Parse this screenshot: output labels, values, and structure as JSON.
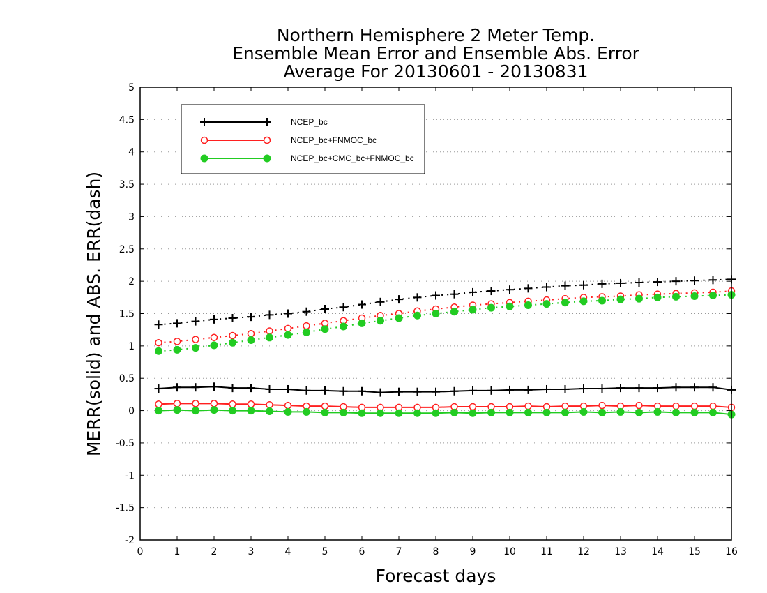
{
  "chart_data": {
    "type": "line",
    "title_lines": [
      "Northern Hemisphere 2 Meter Temp.",
      "Ensemble Mean Error and Ensemble Abs. Error",
      "Average For 20130601 - 20130831"
    ],
    "xlabel": "Forecast days",
    "ylabel": "MERR(solid) and ABS. ERR(dash)",
    "xlim": [
      0,
      16
    ],
    "ylim": [
      -2,
      5
    ],
    "xticks": [
      0,
      1,
      2,
      3,
      4,
      5,
      6,
      7,
      8,
      9,
      10,
      11,
      12,
      13,
      14,
      15,
      16
    ],
    "yticks": [
      -2,
      -1.5,
      -1,
      -0.5,
      0,
      0.5,
      1,
      1.5,
      2,
      2.5,
      3,
      3.5,
      4,
      4.5,
      5
    ],
    "ytick_labels": [
      "-2",
      "-1.5",
      "-1",
      "-0.5",
      "0",
      "0.5",
      "1",
      "1.5",
      "2",
      "2.5",
      "3",
      "3.5",
      "4",
      "4.5",
      "5"
    ],
    "grid": "horizontal dotted",
    "legend_placement": "top-left",
    "x": [
      0.5,
      1,
      1.5,
      2,
      2.5,
      3,
      3.5,
      4,
      4.5,
      5,
      5.5,
      6,
      6.5,
      7,
      7.5,
      8,
      8.5,
      9,
      9.5,
      10,
      10.5,
      11,
      11.5,
      12,
      12.5,
      13,
      13.5,
      14,
      14.5,
      15,
      15.5,
      16
    ],
    "series": [
      {
        "name": "NCEP_bc",
        "color": "#000000",
        "marker": "plus",
        "merr": [
          0.34,
          0.36,
          0.36,
          0.37,
          0.35,
          0.35,
          0.33,
          0.33,
          0.31,
          0.31,
          0.3,
          0.3,
          0.28,
          0.29,
          0.29,
          0.29,
          0.3,
          0.31,
          0.31,
          0.32,
          0.32,
          0.33,
          0.33,
          0.34,
          0.34,
          0.35,
          0.35,
          0.35,
          0.36,
          0.36,
          0.36,
          0.32
        ],
        "abs_err": [
          1.33,
          1.35,
          1.38,
          1.41,
          1.43,
          1.45,
          1.48,
          1.5,
          1.53,
          1.57,
          1.6,
          1.64,
          1.68,
          1.72,
          1.75,
          1.78,
          1.8,
          1.83,
          1.85,
          1.87,
          1.89,
          1.91,
          1.93,
          1.94,
          1.96,
          1.97,
          1.98,
          1.99,
          2.0,
          2.01,
          2.02,
          2.03
        ]
      },
      {
        "name": "NCEP_bc+FNMOC_bc",
        "color": "#ff2020",
        "marker": "open-circle",
        "merr": [
          0.1,
          0.11,
          0.11,
          0.11,
          0.1,
          0.1,
          0.09,
          0.08,
          0.07,
          0.07,
          0.06,
          0.05,
          0.05,
          0.05,
          0.05,
          0.05,
          0.06,
          0.06,
          0.06,
          0.06,
          0.07,
          0.06,
          0.07,
          0.07,
          0.08,
          0.07,
          0.08,
          0.07,
          0.07,
          0.07,
          0.07,
          0.05
        ],
        "abs_err": [
          1.05,
          1.07,
          1.1,
          1.13,
          1.16,
          1.19,
          1.23,
          1.27,
          1.31,
          1.35,
          1.39,
          1.43,
          1.47,
          1.5,
          1.54,
          1.57,
          1.6,
          1.63,
          1.65,
          1.67,
          1.69,
          1.71,
          1.73,
          1.75,
          1.76,
          1.77,
          1.79,
          1.8,
          1.81,
          1.82,
          1.83,
          1.85
        ]
      },
      {
        "name": "NCEP_bc+CMC_bc+FNMOC_bc",
        "color": "#22cc22",
        "marker": "filled-circle",
        "merr": [
          0.0,
          0.01,
          0.0,
          0.01,
          0.0,
          0.0,
          -0.01,
          -0.02,
          -0.02,
          -0.03,
          -0.03,
          -0.04,
          -0.04,
          -0.04,
          -0.04,
          -0.04,
          -0.03,
          -0.04,
          -0.03,
          -0.03,
          -0.03,
          -0.03,
          -0.03,
          -0.02,
          -0.03,
          -0.02,
          -0.03,
          -0.02,
          -0.03,
          -0.03,
          -0.03,
          -0.06
        ],
        "abs_err": [
          0.92,
          0.94,
          0.97,
          1.01,
          1.05,
          1.09,
          1.13,
          1.17,
          1.21,
          1.26,
          1.3,
          1.35,
          1.39,
          1.43,
          1.47,
          1.5,
          1.53,
          1.56,
          1.59,
          1.61,
          1.63,
          1.65,
          1.67,
          1.69,
          1.7,
          1.72,
          1.73,
          1.75,
          1.76,
          1.77,
          1.78,
          1.79
        ]
      }
    ]
  }
}
